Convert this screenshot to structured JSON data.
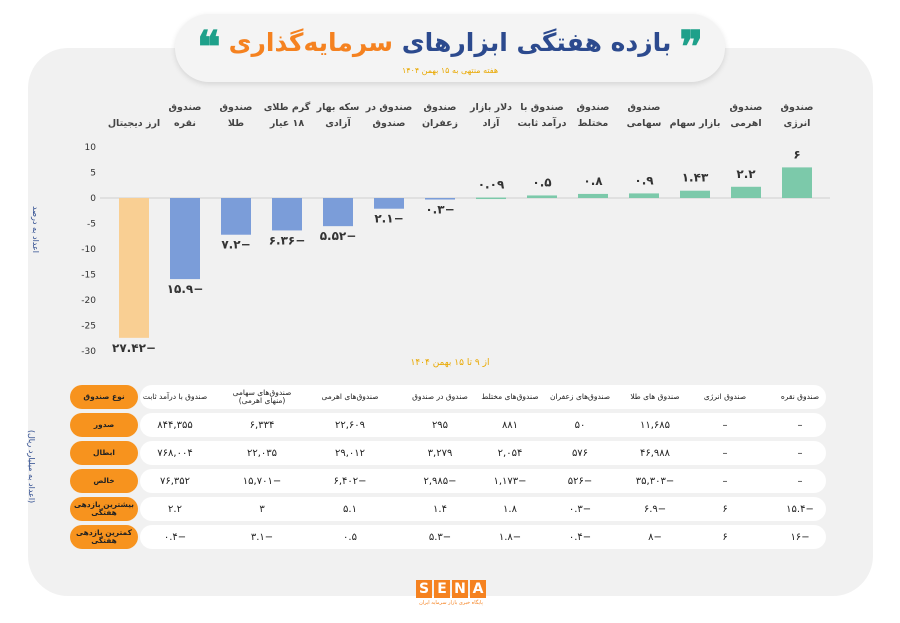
{
  "header": {
    "title_part1": "بازده هفتگی ابزارهای",
    "title_part2": "سرمایه‌گذاری",
    "subtitle": "هفته منتهی به ۱۵ بهمن ۱۴۰۴"
  },
  "chart_data": {
    "type": "bar",
    "title": "بازده هفتگی ابزارهای سرمایه‌گذاری",
    "ylabel": "اعداد به درصد",
    "xlabel": "از ۹ تا ۱۵ بهمن ۱۴۰۴",
    "ylim": [
      -30,
      10
    ],
    "yticks": [
      10,
      5,
      0,
      -5,
      -10,
      -15,
      -20,
      -25,
      -30
    ],
    "categories": [
      [
        "ارز دیجیتال"
      ],
      [
        "صندوق",
        "نقره"
      ],
      [
        "صندوق",
        "طلا"
      ],
      [
        "گرم طلای",
        "۱۸ عیار"
      ],
      [
        "سکه بهار",
        "آزادی"
      ],
      [
        "صندوق در",
        "صندوق"
      ],
      [
        "صندوق",
        "زعفران"
      ],
      [
        "دلار بازار",
        "آزاد"
      ],
      [
        "صندوق با",
        "درآمد ثابت"
      ],
      [
        "صندوق",
        "مختلط"
      ],
      [
        "صندوق",
        "سهامی"
      ],
      [
        "بازار سهام"
      ],
      [
        "صندوق",
        "اهرمی"
      ],
      [
        "صندوق",
        "انرژی"
      ]
    ],
    "values": [
      -27.42,
      -15.9,
      -7.2,
      -6.36,
      -5.52,
      -2.1,
      -0.3,
      0.09,
      0.5,
      0.8,
      0.9,
      1.43,
      2.2,
      6
    ],
    "labels": [
      "−۲۷.۴۲",
      "−۱۵.۹",
      "−۷.۲",
      "−۶.۳۶",
      "−۵.۵۲",
      "−۲.۱",
      "−۰.۳",
      "۰.۰۹",
      "۰.۵",
      "۰.۸",
      "۰.۹",
      "۱.۴۳",
      "۲.۲",
      "۶"
    ],
    "colors": {
      "crypto": "#f9cf93",
      "negative": "#7b9dd9",
      "positive": "#7cc9aa"
    }
  },
  "table": {
    "unit_label": "(اعداد به میلیارد ریال)",
    "row_headers": [
      "نوع صندوق",
      "صدور",
      "ابطال",
      "خالص",
      "بیشترین بازدهی هفتگی",
      "کمترین بازدهی هفتگی"
    ],
    "columns": [
      "صندوق با درآمد ثابت",
      "صندوق‌های سهامی (منهای اهرمی)",
      "صندوق‌های اهرمی",
      "صندوق در صندوق",
      "صندوق‌های مختلط",
      "صندوق‌های زعفران",
      "صندوق های طلا",
      "صندوق انرژی",
      "صندوق نقره"
    ],
    "rows": [
      [
        "۸۴۴,۳۵۵",
        "۶,۳۳۴",
        "۲۲,۶۰۹",
        "۲۹۵",
        "۸۸۱",
        "۵۰",
        "۱۱,۶۸۵",
        "–",
        "–"
      ],
      [
        "۷۶۸,۰۰۴",
        "۲۲,۰۳۵",
        "۲۹,۰۱۲",
        "۳,۲۷۹",
        "۲,۰۵۴",
        "۵۷۶",
        "۴۶,۹۸۸",
        "–",
        "–"
      ],
      [
        "۷۶,۳۵۲",
        "−۱۵,۷۰۱",
        "−۶,۴۰۲",
        "−۲,۹۸۵",
        "−۱,۱۷۳",
        "−۵۲۶",
        "−۳۵,۳۰۳",
        "–",
        "–"
      ],
      [
        "۲.۲",
        "۳",
        "۵.۱",
        "۱.۴",
        "۱.۸",
        "−۰.۳",
        "−۶.۹",
        "۶",
        "−۱۵.۴"
      ],
      [
        "−۰.۴",
        "−۳.۱",
        "۰.۵",
        "−۵.۳",
        "−۱.۸",
        "−۰.۴",
        "−۸",
        "۶",
        "−۱۶"
      ]
    ]
  },
  "footer": {
    "logo": "SENA",
    "tagline": "پایگاه خبری بازار سرمایه ایران"
  }
}
